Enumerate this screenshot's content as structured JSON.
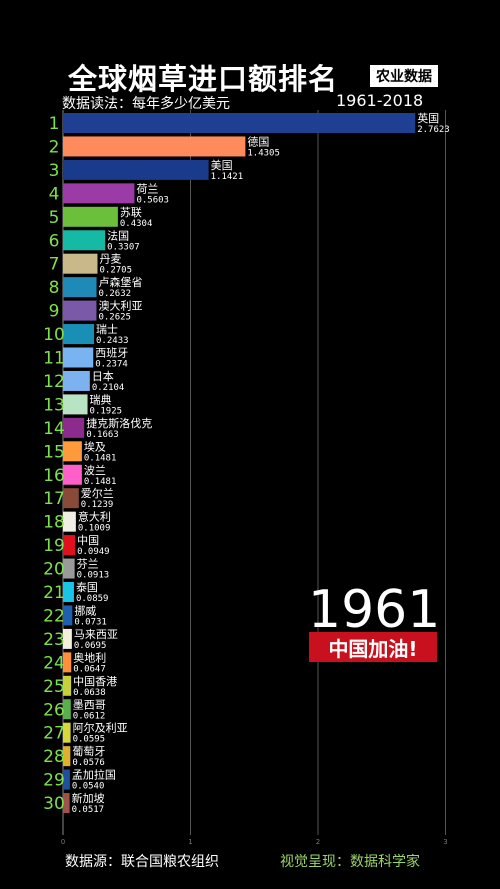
{
  "header": {
    "title": "全球烟草进口额排名",
    "badge": "农业数据",
    "subtitle": "数据读法：每年多少亿美元",
    "year_range": "1961-2018"
  },
  "overlay": {
    "current_year": "1961",
    "cheer": "中国加油!"
  },
  "footer": {
    "source": "数据源：联合国粮农组织",
    "credit": "视觉呈现：数据科学家"
  },
  "chart_data": {
    "type": "bar",
    "orientation": "horizontal",
    "xlim": [
      0,
      3
    ],
    "x_ticks": [
      0,
      1,
      2,
      3
    ],
    "grid": true,
    "ranks": [
      "1",
      "2",
      "3",
      "4",
      "5",
      "6",
      "7",
      "8",
      "9",
      "10",
      "11",
      "12",
      "13",
      "14",
      "15",
      "16",
      "17",
      "18",
      "19",
      "20",
      "21",
      "22",
      "23",
      "24",
      "25",
      "26",
      "27",
      "28",
      "29",
      "30"
    ],
    "categories": [
      "英国",
      "德国",
      "美国",
      "荷兰",
      "苏联",
      "法国",
      "丹麦",
      "卢森堡省",
      "澳大利亚",
      "瑞士",
      "西班牙",
      "日本",
      "瑞典",
      "捷克斯洛伐克",
      "埃及",
      "波兰",
      "爱尔兰",
      "意大利",
      "中国",
      "芬兰",
      "泰国",
      "挪威",
      "马来西亚",
      "奥地利",
      "中国香港",
      "墨西哥",
      "阿尔及利亚",
      "葡萄牙",
      "孟加拉国",
      "新加坡"
    ],
    "values": [
      2.7623,
      1.4305,
      1.1421,
      0.5603,
      0.4304,
      0.3307,
      0.2705,
      0.2632,
      0.2625,
      0.2433,
      0.2374,
      0.2104,
      0.1925,
      0.1663,
      0.1481,
      0.1481,
      0.1239,
      0.1009,
      0.0949,
      0.0913,
      0.0859,
      0.0731,
      0.0695,
      0.0647,
      0.0638,
      0.0612,
      0.0595,
      0.0576,
      0.054,
      0.0517
    ],
    "value_labels": [
      "2.7623",
      "1.4305",
      "1.1421",
      "0.5603",
      "0.4304",
      "0.3307",
      "0.2705",
      "0.2632",
      "0.2625",
      "0.2433",
      "0.2374",
      "0.2104",
      "0.1925",
      "0.1663",
      "0.1481",
      "0.1481",
      "0.1239",
      "0.1009",
      "0.0949",
      "0.0913",
      "0.0859",
      "0.0731",
      "0.0695",
      "0.0647",
      "0.0638",
      "0.0612",
      "0.0595",
      "0.0576",
      "0.0540",
      "0.0517"
    ],
    "colors": [
      "#1f3f93",
      "#ff8a5c",
      "#1a3a8c",
      "#9a3ba6",
      "#6cbf3a",
      "#16b9a3",
      "#c9b98a",
      "#1f89b8",
      "#7a5aa8",
      "#1a8fb5",
      "#7ab3f2",
      "#7cb2f0",
      "#b9e4c4",
      "#8d2a8d",
      "#ff9a3c",
      "#ff5fc8",
      "#8a4a3a",
      "#f0efe4",
      "#e0101e",
      "#9a9a9a",
      "#1ac4e6",
      "#1f5fb0",
      "#f5f0dc",
      "#ff8f3a",
      "#c9d13a",
      "#58b04a",
      "#d8d83a",
      "#e0b02a",
      "#1f4fa0",
      "#a0524a"
    ],
    "rank_color": "#7ee04a"
  }
}
